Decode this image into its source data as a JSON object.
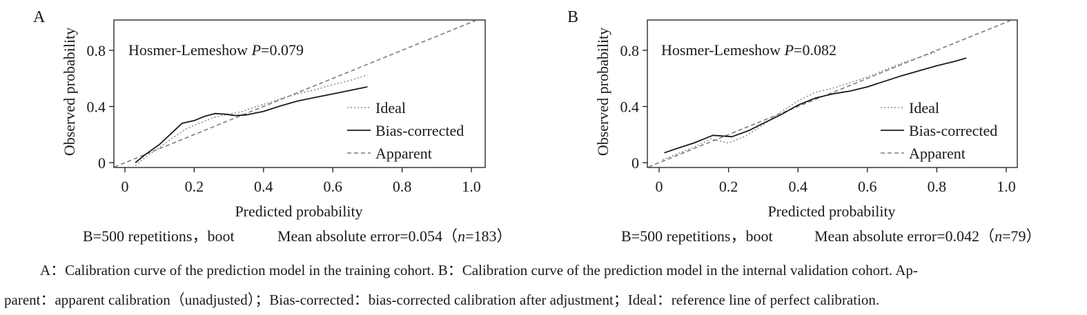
{
  "chart_data": [
    {
      "panel_label": "A",
      "type": "line",
      "xlabel": "Predicted probability",
      "ylabel": "Observed probability",
      "xlim": [
        0,
        1.0
      ],
      "ylim": [
        0,
        1.0
      ],
      "xticks": [
        0,
        0.2,
        0.4,
        0.6,
        0.8,
        1.0
      ],
      "xtick_labels": [
        "0",
        "0.2",
        "0.4",
        "0.6",
        "0.8",
        "1.0"
      ],
      "yticks": [
        0,
        0.4,
        0.8
      ],
      "ytick_labels": [
        "0",
        "0.4",
        "0.8"
      ],
      "grid": false,
      "legend_position": "bottom-right",
      "annotation": {
        "prefix": "Hosmer-Lemeshow ",
        "italic": "P",
        "suffix": "=0.079"
      },
      "footer": {
        "left": "B=500 repetitions，boot",
        "right_prefix": "Mean absolute error=0.054（",
        "right_italic": "n",
        "right_suffix": "=183）"
      },
      "series": [
        {
          "name": "Ideal",
          "style": "dotted",
          "color": "#8c8c8c",
          "x": [
            0.03,
            0.06,
            0.1,
            0.14,
            0.18,
            0.22,
            0.26,
            0.3,
            0.34,
            0.38,
            0.42,
            0.46,
            0.5,
            0.55,
            0.6,
            0.65,
            0.7
          ],
          "y": [
            -0.02,
            0.04,
            0.11,
            0.18,
            0.245,
            0.285,
            0.325,
            0.345,
            0.365,
            0.4,
            0.43,
            0.465,
            0.49,
            0.52,
            0.555,
            0.585,
            0.625
          ]
        },
        {
          "name": "Bias-corrected",
          "style": "solid",
          "color": "#1a1a1a",
          "x": [
            0.03,
            0.06,
            0.1,
            0.13,
            0.165,
            0.2,
            0.23,
            0.26,
            0.29,
            0.32,
            0.35,
            0.4,
            0.45,
            0.5,
            0.55,
            0.6,
            0.65,
            0.7
          ],
          "y": [
            0.0,
            0.06,
            0.13,
            0.2,
            0.28,
            0.3,
            0.33,
            0.35,
            0.345,
            0.335,
            0.34,
            0.365,
            0.405,
            0.44,
            0.465,
            0.49,
            0.515,
            0.54
          ]
        },
        {
          "name": "Apparent",
          "style": "dashed",
          "color": "#7a7a7a",
          "x": [
            -0.03,
            1.03
          ],
          "y": [
            -0.03,
            1.03
          ]
        }
      ]
    },
    {
      "panel_label": "B",
      "type": "line",
      "xlabel": "Predicted probability",
      "ylabel": "Observed probability",
      "xlim": [
        0,
        1.0
      ],
      "ylim": [
        0,
        1.0
      ],
      "xticks": [
        0,
        0.2,
        0.4,
        0.6,
        0.8,
        1.0
      ],
      "xtick_labels": [
        "0",
        "0.2",
        "0.4",
        "0.6",
        "0.8",
        "1.0"
      ],
      "yticks": [
        0,
        0.4,
        0.8
      ],
      "ytick_labels": [
        "0",
        "0.4",
        "0.8"
      ],
      "grid": false,
      "legend_position": "bottom-right",
      "annotation": {
        "prefix": "Hosmer-Lemeshow ",
        "italic": "P",
        "suffix": "=0.082"
      },
      "footer": {
        "left": "B=500 repetitions，boot",
        "right_prefix": "Mean absolute error=0.042（",
        "right_italic": "n",
        "right_suffix": "=79）"
      },
      "series": [
        {
          "name": "Ideal",
          "style": "dotted",
          "color": "#8c8c8c",
          "x": [
            0.01,
            0.05,
            0.1,
            0.15,
            0.2,
            0.25,
            0.3,
            0.35,
            0.4,
            0.45,
            0.5,
            0.55,
            0.6,
            0.65,
            0.7,
            0.75,
            0.8
          ],
          "y": [
            0.02,
            0.06,
            0.11,
            0.17,
            0.14,
            0.19,
            0.27,
            0.36,
            0.44,
            0.5,
            0.53,
            0.57,
            0.61,
            0.66,
            0.71,
            0.75,
            0.79
          ]
        },
        {
          "name": "Bias-corrected",
          "style": "solid",
          "color": "#1a1a1a",
          "x": [
            0.015,
            0.05,
            0.1,
            0.155,
            0.21,
            0.26,
            0.3,
            0.35,
            0.4,
            0.45,
            0.5,
            0.55,
            0.6,
            0.65,
            0.7,
            0.75,
            0.8,
            0.85,
            0.885
          ],
          "y": [
            0.07,
            0.1,
            0.14,
            0.195,
            0.185,
            0.23,
            0.28,
            0.34,
            0.41,
            0.46,
            0.49,
            0.51,
            0.54,
            0.58,
            0.62,
            0.655,
            0.69,
            0.72,
            0.745
          ]
        },
        {
          "name": "Apparent",
          "style": "dashed",
          "color": "#7a7a7a",
          "x": [
            -0.03,
            1.03
          ],
          "y": [
            -0.03,
            1.03
          ]
        }
      ]
    }
  ],
  "caption": {
    "line1": "A：Calibration curve of the prediction model in the training cohort. B：Calibration curve of the prediction model in the internal validation cohort. Ap-",
    "line2": "parent：apparent calibration（unadjusted）；Bias-corrected：bias-corrected calibration after adjustment；Ideal：reference line of perfect calibration."
  }
}
